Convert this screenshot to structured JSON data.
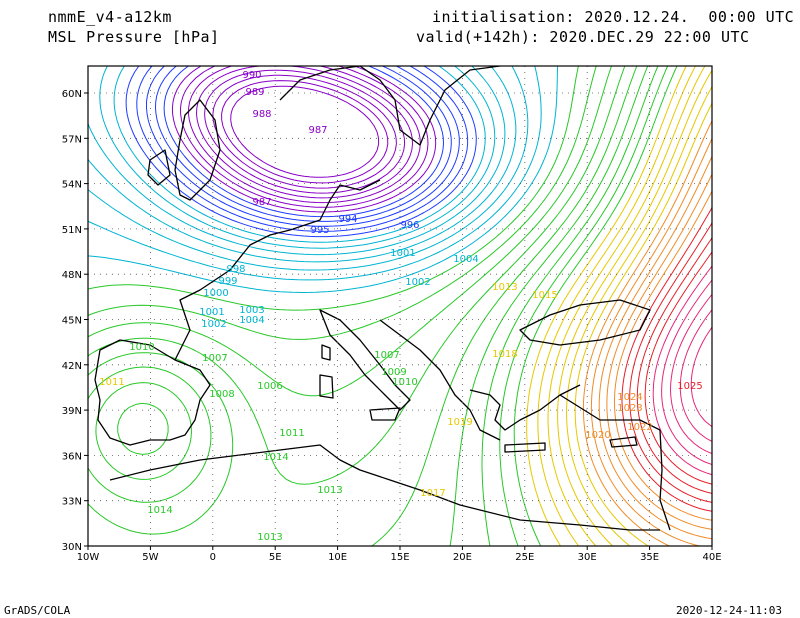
{
  "header": {
    "model": "nmmE_v4-a12km",
    "field": "MSL Pressure [hPa]",
    "init": "initialisation: 2020.12.24.  00:00 UTC",
    "valid": "valid(+142h): 2020.DEC.29 22:00 UTC"
  },
  "footer": {
    "credit": "GrADS/COLA",
    "timestamp": "2020-12-24-11:03"
  },
  "axes": {
    "lon_ticks": [
      "10W",
      "5W",
      "0",
      "5E",
      "10E",
      "15E",
      "20E",
      "25E",
      "30E",
      "35E",
      "40E"
    ],
    "lat_ticks": [
      "30N",
      "33N",
      "36N",
      "39N",
      "42N",
      "45N",
      "48N",
      "51N",
      "54N",
      "57N",
      "60N"
    ]
  },
  "colors": {
    "low": "#8a00c8",
    "blue": "#1e3cff",
    "cyan": "#00b4d2",
    "green": "#28c828",
    "yellow": "#e6c800",
    "orange": "#f08c28",
    "red": "#e61e28",
    "pink": "#e6287a"
  },
  "contour_labels": [
    {
      "text": "990",
      "c": "low"
    },
    {
      "text": "989",
      "c": "low"
    },
    {
      "text": "988",
      "c": "low"
    },
    {
      "text": "987",
      "c": "low"
    },
    {
      "text": "987",
      "c": "low"
    },
    {
      "text": "994",
      "c": "blue"
    },
    {
      "text": "995",
      "c": "blue"
    },
    {
      "text": "996",
      "c": "blue"
    },
    {
      "text": "998",
      "c": "cyan"
    },
    {
      "text": "999",
      "c": "cyan"
    },
    {
      "text": "1000",
      "c": "cyan"
    },
    {
      "text": "1001",
      "c": "cyan"
    },
    {
      "text": "1002",
      "c": "cyan"
    },
    {
      "text": "1003",
      "c": "cyan"
    },
    {
      "text": "1004",
      "c": "cyan"
    },
    {
      "text": "1002",
      "c": "cyan"
    },
    {
      "text": "1004",
      "c": "cyan"
    },
    {
      "text": "1001",
      "c": "cyan"
    },
    {
      "text": "1006",
      "c": "green"
    },
    {
      "text": "1007",
      "c": "green"
    },
    {
      "text": "1008",
      "c": "green"
    },
    {
      "text": "1010",
      "c": "green"
    },
    {
      "text": "1011",
      "c": "green"
    },
    {
      "text": "1013",
      "c": "green"
    },
    {
      "text": "1014",
      "c": "green"
    },
    {
      "text": "1007",
      "c": "green"
    },
    {
      "text": "1009",
      "c": "green"
    },
    {
      "text": "1010",
      "c": "green"
    },
    {
      "text": "1013",
      "c": "yellow"
    },
    {
      "text": "1015",
      "c": "yellow"
    },
    {
      "text": "1017",
      "c": "yellow"
    },
    {
      "text": "1018",
      "c": "yellow"
    },
    {
      "text": "1019",
      "c": "yellow"
    },
    {
      "text": "1020",
      "c": "orange"
    },
    {
      "text": "1022",
      "c": "orange"
    },
    {
      "text": "1023",
      "c": "orange"
    },
    {
      "text": "1024",
      "c": "orange"
    },
    {
      "text": "1025",
      "c": "red"
    },
    {
      "text": "1011",
      "c": "yellow"
    },
    {
      "text": "1014",
      "c": "green"
    },
    {
      "text": "1013",
      "c": "green"
    }
  ]
}
